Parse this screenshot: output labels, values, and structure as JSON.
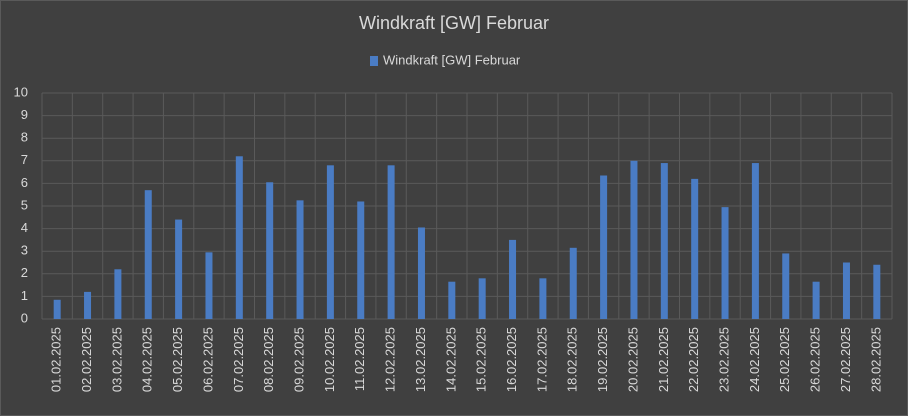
{
  "chart_data": {
    "type": "bar",
    "title": "Windkraft [GW] Februar",
    "categories": [
      "01.02.2025",
      "02.02.2025",
      "03.02.2025",
      "04.02.2025",
      "05.02.2025",
      "06.02.2025",
      "07.02.2025",
      "08.02.2025",
      "09.02.2025",
      "10.02.2025",
      "11.02.2025",
      "12.02.2025",
      "13.02.2025",
      "14.02.2025",
      "15.02.2025",
      "16.02.2025",
      "17.02.2025",
      "18.02.2025",
      "19.02.2025",
      "20.02.2025",
      "21.02.2025",
      "22.02.2025",
      "23.02.2025",
      "24.02.2025",
      "25.02.2025",
      "26.02.2025",
      "27.02.2025",
      "28.02.2025"
    ],
    "series": [
      {
        "name": "Windkraft [GW] Februar",
        "color": "#4a7cc4",
        "values": [
          0.85,
          1.2,
          2.2,
          5.7,
          4.4,
          2.95,
          7.2,
          6.05,
          5.25,
          6.8,
          5.2,
          6.8,
          4.05,
          1.65,
          1.8,
          3.5,
          1.8,
          3.15,
          6.35,
          7.0,
          6.9,
          6.2,
          4.95,
          6.9,
          2.9,
          1.65,
          2.5,
          2.4
        ]
      }
    ],
    "ylim": [
      0,
      10
    ],
    "yticks": [
      0,
      1,
      2,
      3,
      4,
      5,
      6,
      7,
      8,
      9,
      10
    ],
    "grid": true,
    "legend": "top"
  }
}
